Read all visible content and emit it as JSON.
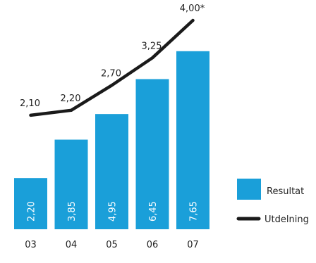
{
  "chart_data": {
    "type": "bar",
    "categories": [
      "03",
      "04",
      "05",
      "06",
      "07"
    ],
    "series": [
      {
        "name": "Resultat",
        "type": "bar",
        "values": [
          2.2,
          3.85,
          4.95,
          6.45,
          7.65
        ],
        "labels": [
          "2,20",
          "3,85",
          "4,95",
          "6,45",
          "7,65"
        ],
        "color": "#1a9fd9"
      },
      {
        "name": "Utdelning",
        "type": "line",
        "values": [
          2.1,
          2.2,
          2.7,
          3.25,
          4.0
        ],
        "labels": [
          "2,10",
          "2,20",
          "2,70",
          "3,25",
          "4,00*"
        ],
        "color": "#1a1a1a"
      }
    ],
    "legend_position": "right",
    "grid": false
  }
}
